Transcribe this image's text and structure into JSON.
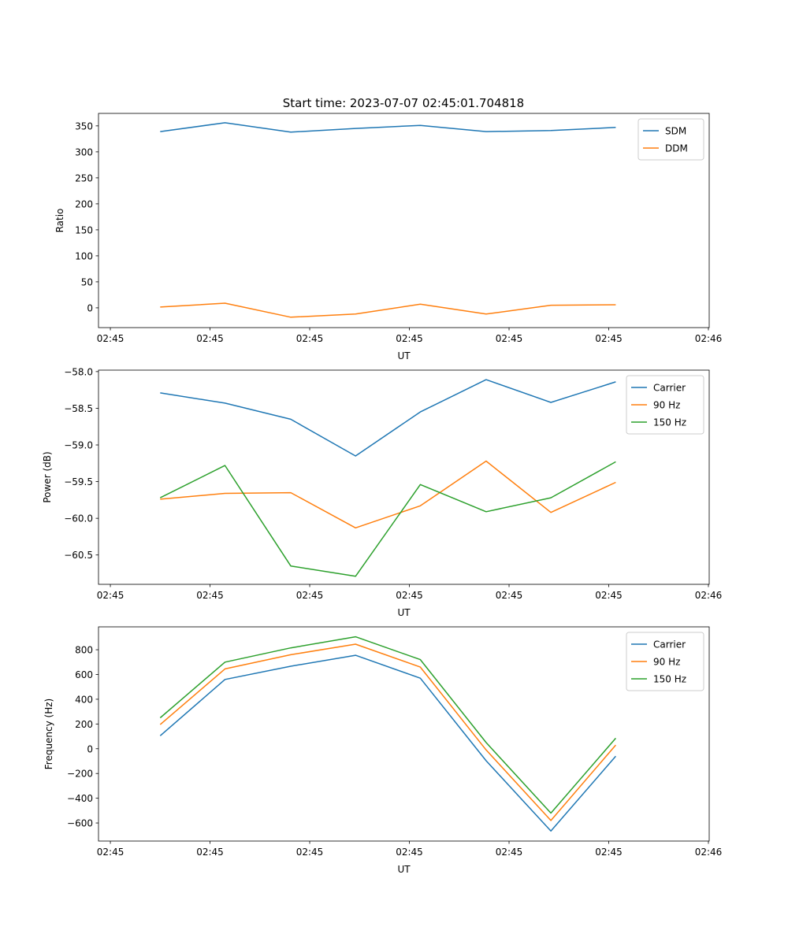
{
  "title": "Start time: 2023-07-07 02:45:01.704818",
  "chart_data": [
    {
      "type": "line",
      "xlabel": "UT",
      "ylabel": "Ratio",
      "x": [
        5.0,
        11.5,
        18.1,
        24.6,
        31.1,
        37.7,
        44.2,
        50.7
      ],
      "xlim": [
        -1.19,
        60.08
      ],
      "xticks": [
        0,
        10,
        20,
        30,
        40,
        50,
        60
      ],
      "xtick_labels": [
        "02:45",
        "02:45",
        "02:45",
        "02:45",
        "02:45",
        "02:45",
        "02:46"
      ],
      "ylim": [
        -38,
        374
      ],
      "yticks": [
        0,
        50,
        100,
        150,
        200,
        250,
        300,
        350
      ],
      "ytick_labels": [
        "0",
        "50",
        "100",
        "150",
        "200",
        "250",
        "300",
        "350"
      ],
      "legend": "top-right",
      "series": [
        {
          "name": "SDM",
          "color": "#1f77b4",
          "values": [
            339,
            356,
            338,
            345,
            351,
            339,
            341,
            347
          ]
        },
        {
          "name": "DDM",
          "color": "#ff7f0e",
          "values": [
            1.5,
            9,
            -18,
            -12,
            7,
            -12,
            5,
            6
          ]
        }
      ]
    },
    {
      "type": "line",
      "xlabel": "UT",
      "ylabel": "Power (dB)",
      "x": [
        5.0,
        11.5,
        18.1,
        24.6,
        31.1,
        37.7,
        44.2,
        50.7
      ],
      "xlim": [
        -1.19,
        60.08
      ],
      "xticks": [
        0,
        10,
        20,
        30,
        40,
        50,
        60
      ],
      "xtick_labels": [
        "02:45",
        "02:45",
        "02:45",
        "02:45",
        "02:45",
        "02:45",
        "02:46"
      ],
      "ylim": [
        -60.9,
        -57.98
      ],
      "yticks": [
        -60.5,
        -60.0,
        -59.5,
        -59.0,
        -58.5,
        -58.0
      ],
      "ytick_labels": [
        "−60.5",
        "−60.0",
        "−59.5",
        "−59.0",
        "−58.5",
        "−58.0"
      ],
      "legend": "top-right",
      "series": [
        {
          "name": "Carrier",
          "color": "#1f77b4",
          "values": [
            -58.29,
            -58.43,
            -58.65,
            -59.15,
            -58.55,
            -58.11,
            -58.42,
            -58.14
          ]
        },
        {
          "name": "90 Hz",
          "color": "#ff7f0e",
          "values": [
            -59.74,
            -59.66,
            -59.65,
            -60.13,
            -59.83,
            -59.22,
            -59.92,
            -59.51
          ]
        },
        {
          "name": "150 Hz",
          "color": "#2ca02c",
          "values": [
            -59.72,
            -59.28,
            -60.65,
            -60.79,
            -59.54,
            -59.91,
            -59.72,
            -59.23
          ]
        }
      ]
    },
    {
      "type": "line",
      "xlabel": "UT",
      "ylabel": "Frequency (Hz)",
      "x": [
        5.0,
        11.5,
        18.1,
        24.6,
        31.1,
        37.7,
        44.2,
        50.7
      ],
      "xlim": [
        -1.19,
        60.08
      ],
      "xticks": [
        0,
        10,
        20,
        30,
        40,
        50,
        60
      ],
      "xtick_labels": [
        "02:45",
        "02:45",
        "02:45",
        "02:45",
        "02:45",
        "02:45",
        "02:46"
      ],
      "ylim": [
        -746,
        985
      ],
      "yticks": [
        -600,
        -400,
        -200,
        0,
        200,
        400,
        600,
        800
      ],
      "ytick_labels": [
        "−600",
        "−400",
        "−200",
        "0",
        "200",
        "400",
        "600",
        "800"
      ],
      "legend": "top-right",
      "series": [
        {
          "name": "Carrier",
          "color": "#1f77b4",
          "values": [
            105,
            560,
            667,
            755,
            570,
            -97,
            -665,
            -60
          ]
        },
        {
          "name": "90 Hz",
          "color": "#ff7f0e",
          "values": [
            195,
            645,
            760,
            845,
            660,
            -10,
            -580,
            30
          ]
        },
        {
          "name": "150 Hz",
          "color": "#2ca02c",
          "values": [
            250,
            700,
            815,
            905,
            720,
            50,
            -520,
            85
          ]
        }
      ]
    }
  ]
}
